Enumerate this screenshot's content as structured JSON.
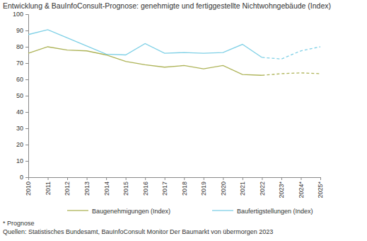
{
  "chart_data": {
    "type": "line",
    "title": "Entwicklung & BauInfoConsult-Prognose: genehmigte und fertiggestellte Nichtwohngebäude (Index)",
    "categories": [
      "2010",
      "2011",
      "2012",
      "2013",
      "2014",
      "2015",
      "2016",
      "2017",
      "2018",
      "2019",
      "2020",
      "2021",
      "2022",
      "2023*",
      "2024*",
      "2025*"
    ],
    "series": [
      {
        "name": "Baugenehmigungen (Index)",
        "color": "#adb357",
        "values": [
          76,
          80,
          78,
          77.5,
          75,
          71,
          69,
          67.5,
          68.5,
          66.5,
          68.5,
          63,
          62.5,
          63.5,
          64,
          63.5
        ]
      },
      {
        "name": "Baufertigstellungen (Index)",
        "color": "#7fd0e6",
        "values": [
          87.5,
          90.5,
          85.5,
          80.5,
          75.5,
          75,
          82,
          76,
          76.5,
          76,
          76.5,
          81.5,
          73.5,
          72.5,
          77.5,
          80
        ]
      }
    ],
    "ylim": [
      0,
      100
    ],
    "yticks": [
      0,
      10,
      20,
      30,
      40,
      50,
      60,
      70,
      80,
      90,
      100
    ],
    "grid": false,
    "legend": "bottom",
    "annotations": [
      "* Prognose",
      "Quellen: Statistisches Bundesamt, BauInfoConsult Monitor Der Baumarkt von übermorgen 2023"
    ]
  }
}
